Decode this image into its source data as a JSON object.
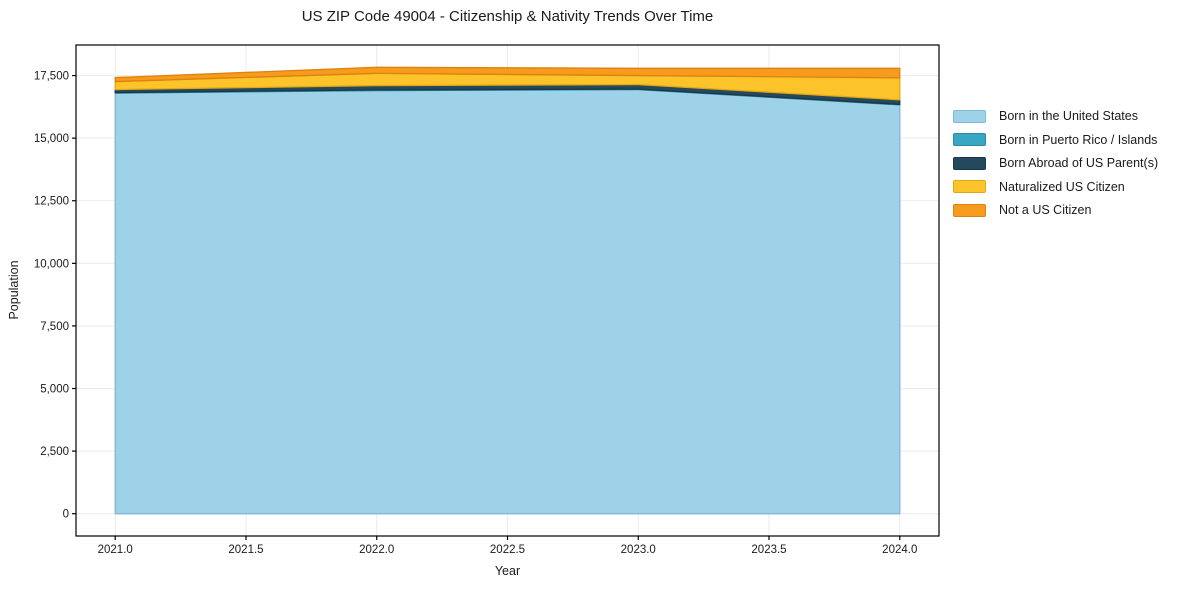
{
  "title": "US ZIP Code 49004 - Citizenship & Nativity Trends Over Time",
  "chart_data": {
    "type": "area",
    "stacked": true,
    "title": "US ZIP Code 49004 - Citizenship & Nativity Trends Over Time",
    "xlabel": "Year",
    "ylabel": "Population",
    "x": [
      2021,
      2022,
      2023,
      2024
    ],
    "series": [
      {
        "name": "Born in the United States",
        "color": "#9ed2e8",
        "edge": "#7db9d5",
        "values": [
          16800,
          16900,
          16940,
          16330
        ]
      },
      {
        "name": "Born in Puerto Rico / Islands",
        "color": "#39a7c4",
        "edge": "#2d8aa4",
        "values": [
          20,
          30,
          20,
          20
        ]
      },
      {
        "name": "Born Abroad of US Parent(s)",
        "color": "#24485c",
        "edge": "#1a3748",
        "values": [
          120,
          170,
          180,
          180
        ]
      },
      {
        "name": "Naturalized US Citizen",
        "color": "#fdc32b",
        "edge": "#e2a714",
        "values": [
          320,
          490,
          360,
          880
        ]
      },
      {
        "name": "Not a US Citizen",
        "color": "#f79b1e",
        "edge": "#dd820c",
        "values": [
          160,
          240,
          290,
          380
        ]
      }
    ],
    "totals": [
      17420,
      17830,
      17790,
      17790
    ],
    "xlim": [
      2020.85,
      2024.15
    ],
    "ylim": [
      -891,
      18721
    ],
    "x_ticks": {
      "values": [
        2021.0,
        2021.5,
        2022.0,
        2022.5,
        2023.0,
        2023.5,
        2024.0
      ],
      "labels": [
        "2021.0",
        "2021.5",
        "2022.0",
        "2022.5",
        "2023.0",
        "2023.5",
        "2024.0"
      ]
    },
    "y_ticks": {
      "values": [
        0,
        2500,
        5000,
        7500,
        10000,
        12500,
        15000,
        17500
      ],
      "labels": [
        "0",
        "2,500",
        "5,000",
        "7,500",
        "10,000",
        "12,500",
        "15,000",
        "17,500"
      ]
    },
    "grid": true,
    "legend_position": "right-outside",
    "style": {
      "grid_color": "#ebebeb",
      "spine_color": "#000000",
      "tick_text_color": "#1a1a1a",
      "background": "#ffffff"
    }
  }
}
